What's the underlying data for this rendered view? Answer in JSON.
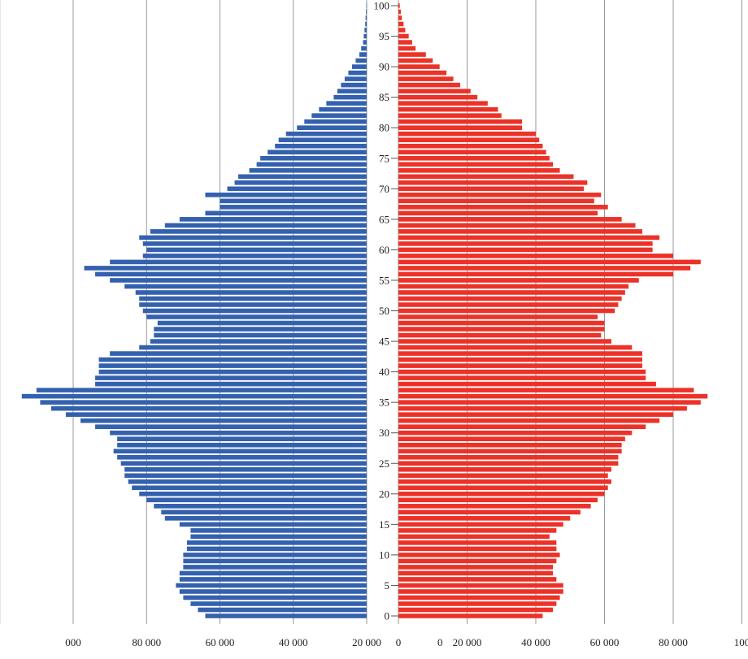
{
  "chart_data": {
    "type": "bar",
    "orientation": "horizontal",
    "layout": "population-pyramid",
    "title": "",
    "ages": [
      0,
      1,
      2,
      3,
      4,
      5,
      6,
      7,
      8,
      9,
      10,
      11,
      12,
      13,
      14,
      15,
      16,
      17,
      18,
      19,
      20,
      21,
      22,
      23,
      24,
      25,
      26,
      27,
      28,
      29,
      30,
      31,
      32,
      33,
      34,
      35,
      36,
      37,
      38,
      39,
      40,
      41,
      42,
      43,
      44,
      45,
      46,
      47,
      48,
      49,
      50,
      51,
      52,
      53,
      54,
      55,
      56,
      57,
      58,
      59,
      60,
      61,
      62,
      63,
      64,
      65,
      66,
      67,
      68,
      69,
      70,
      71,
      72,
      73,
      74,
      75,
      76,
      77,
      78,
      79,
      80,
      81,
      82,
      83,
      84,
      85,
      86,
      87,
      88,
      89,
      90,
      91,
      92,
      93,
      94,
      95,
      96,
      97,
      98,
      99,
      100
    ],
    "age_tick_labels": [
      "0",
      "5",
      "10",
      "15",
      "20",
      "25",
      "30",
      "35",
      "40",
      "45",
      "50",
      "55",
      "60",
      "65",
      "70",
      "75",
      "80",
      "85",
      "90",
      "95",
      "100"
    ],
    "x_tick_labels_left": [
      "000",
      "80 000",
      "60 000",
      "40 000",
      "20 000",
      "0"
    ],
    "x_tick_labels_right": [
      "0",
      "20 000",
      "40 000",
      "60 000",
      "80 000",
      "100"
    ],
    "xlim": [
      0,
      100000
    ],
    "grid": "vertical",
    "series": [
      {
        "side": "left",
        "color": "#3461ae",
        "values": [
          44000,
          46000,
          48000,
          50000,
          51000,
          52000,
          51000,
          51000,
          50000,
          50000,
          50000,
          49000,
          49000,
          48000,
          48000,
          51000,
          55000,
          56000,
          58000,
          60000,
          62000,
          64000,
          65000,
          66000,
          66000,
          67000,
          68000,
          69000,
          68000,
          68000,
          70000,
          74000,
          78000,
          82000,
          86000,
          89000,
          94000,
          90000,
          74000,
          74000,
          73000,
          73000,
          73000,
          70000,
          62000,
          59000,
          58000,
          58000,
          57000,
          60000,
          61000,
          62000,
          62000,
          63000,
          66000,
          70000,
          74000,
          77000,
          70000,
          61000,
          60000,
          61000,
          62000,
          59000,
          55000,
          51000,
          44000,
          40000,
          40000,
          44000,
          38000,
          36000,
          35000,
          32000,
          30000,
          29000,
          27000,
          25000,
          24000,
          22000,
          19000,
          17000,
          15000,
          13000,
          11000,
          9000,
          8000,
          7000,
          6000,
          5000,
          4000,
          3000,
          2000,
          1500,
          1000,
          800,
          600,
          400,
          300,
          200,
          100
        ]
      },
      {
        "side": "right",
        "color": "#ec3228",
        "values": [
          42000,
          45000,
          46000,
          47000,
          48000,
          48000,
          46000,
          45000,
          45000,
          46000,
          47000,
          46000,
          46000,
          44000,
          46000,
          48000,
          50000,
          53000,
          56000,
          58000,
          60000,
          61000,
          62000,
          61000,
          62000,
          64000,
          64000,
          65000,
          65000,
          66000,
          68000,
          72000,
          76000,
          80000,
          84000,
          88000,
          90000,
          86000,
          75000,
          72000,
          72000,
          71000,
          71000,
          71000,
          68000,
          62000,
          59000,
          60000,
          60000,
          58000,
          63000,
          64000,
          65000,
          66000,
          67000,
          70000,
          80000,
          85000,
          88000,
          80000,
          74000,
          74000,
          76000,
          71000,
          69000,
          65000,
          58000,
          61000,
          57000,
          59000,
          54000,
          55000,
          51000,
          47000,
          45000,
          44000,
          43000,
          42000,
          41000,
          40000,
          36000,
          36000,
          30000,
          29000,
          26000,
          23000,
          21000,
          18000,
          16000,
          14000,
          12000,
          10000,
          8000,
          5000,
          4000,
          3000,
          2000,
          1500,
          1000,
          700,
          400
        ]
      }
    ]
  }
}
